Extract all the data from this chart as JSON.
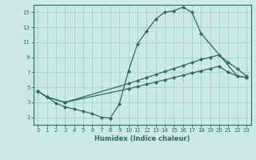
{
  "xlabel": "Humidex (Indice chaleur)",
  "bg_color": "#cce8e8",
  "grid_color": "#a8cccc",
  "line_color": "#2a6b65",
  "xlim": [
    -0.5,
    23.5
  ],
  "ylim": [
    0,
    16
  ],
  "xticks": [
    0,
    1,
    2,
    3,
    4,
    5,
    6,
    7,
    8,
    9,
    10,
    11,
    12,
    13,
    14,
    15,
    16,
    17,
    18,
    19,
    20,
    21,
    22,
    23
  ],
  "yticks": [
    1,
    3,
    5,
    7,
    9,
    11,
    13,
    15
  ],
  "line1_x": [
    0,
    1,
    2,
    3,
    4,
    5,
    6,
    7,
    8,
    9,
    10,
    11,
    12,
    13,
    14,
    15,
    16,
    17,
    18,
    22,
    23
  ],
  "line1_y": [
    4.5,
    3.7,
    2.9,
    2.4,
    2.1,
    1.8,
    1.5,
    1.0,
    0.9,
    2.8,
    7.2,
    10.8,
    12.5,
    14.1,
    15.0,
    15.2,
    15.7,
    15.0,
    12.2,
    6.5,
    6.3
  ],
  "line2_x": [
    0,
    1,
    3,
    10,
    11,
    12,
    13,
    14,
    15,
    16,
    17,
    18,
    19,
    20,
    21,
    22,
    23
  ],
  "line2_y": [
    4.5,
    3.7,
    3.0,
    5.5,
    5.9,
    6.3,
    6.7,
    7.1,
    7.5,
    7.9,
    8.3,
    8.7,
    9.0,
    9.3,
    8.3,
    7.5,
    6.5
  ],
  "line3_x": [
    0,
    1,
    3,
    10,
    11,
    12,
    13,
    14,
    15,
    16,
    17,
    18,
    19,
    20,
    21,
    22,
    23
  ],
  "line3_y": [
    4.5,
    3.7,
    3.0,
    4.8,
    5.1,
    5.4,
    5.7,
    6.0,
    6.3,
    6.6,
    6.9,
    7.2,
    7.5,
    7.8,
    7.0,
    6.5,
    6.3
  ]
}
